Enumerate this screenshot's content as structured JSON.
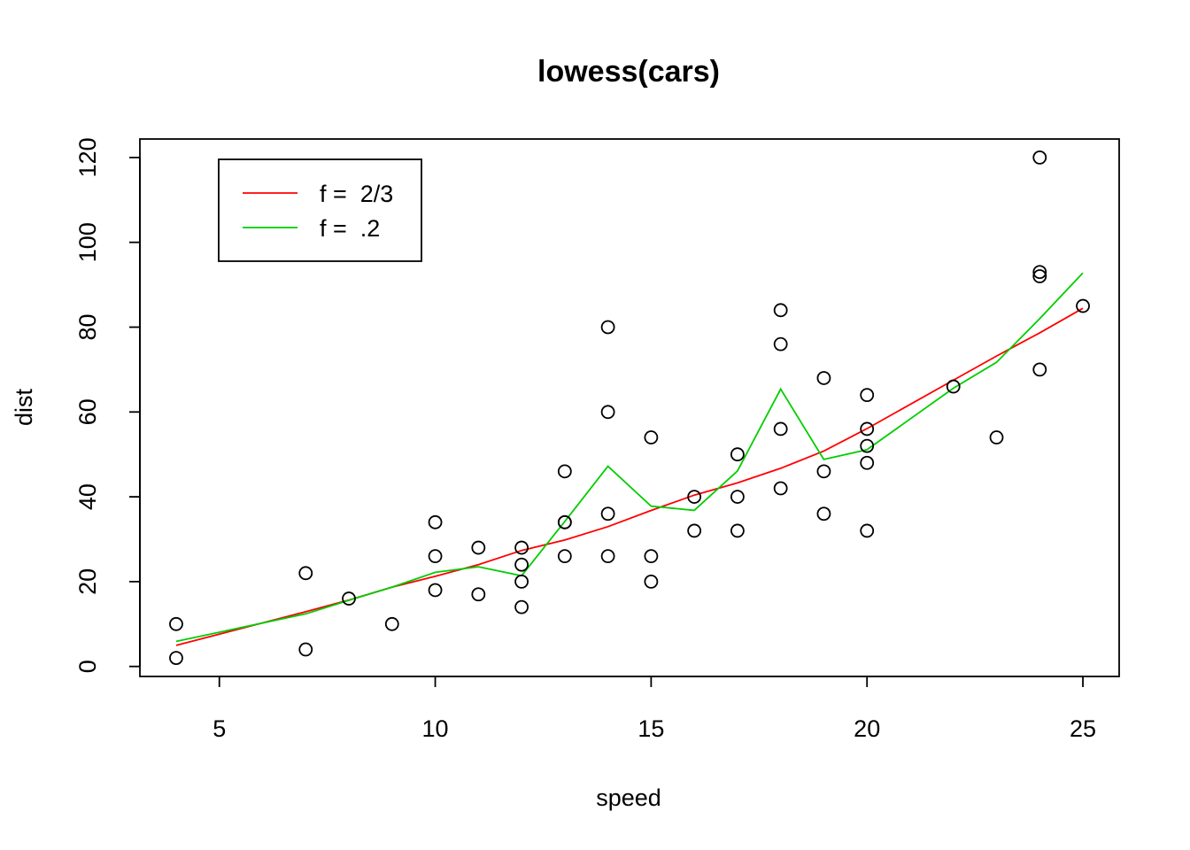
{
  "chart_data": {
    "type": "scatter",
    "title": "lowess(cars)",
    "xlabel": "speed",
    "ylabel": "dist",
    "xlim": [
      3.16,
      25.84
    ],
    "ylim": [
      -2.36,
      124.36
    ],
    "x_ticks": [
      5,
      10,
      15,
      20,
      25
    ],
    "y_ticks": [
      0,
      20,
      40,
      60,
      80,
      100,
      120
    ],
    "grid": false,
    "legend_position": "top-left",
    "points": {
      "x": [
        4,
        4,
        7,
        7,
        8,
        9,
        10,
        10,
        10,
        11,
        11,
        12,
        12,
        12,
        12,
        13,
        13,
        13,
        13,
        14,
        14,
        14,
        14,
        15,
        15,
        15,
        16,
        16,
        17,
        17,
        17,
        18,
        18,
        18,
        18,
        19,
        19,
        19,
        20,
        20,
        20,
        20,
        20,
        22,
        23,
        24,
        24,
        24,
        24,
        25
      ],
      "y": [
        2,
        10,
        4,
        22,
        16,
        10,
        18,
        26,
        34,
        17,
        28,
        14,
        20,
        24,
        28,
        26,
        34,
        34,
        46,
        26,
        36,
        60,
        80,
        20,
        26,
        54,
        32,
        40,
        32,
        40,
        50,
        42,
        56,
        76,
        84,
        36,
        46,
        68,
        32,
        48,
        52,
        56,
        64,
        66,
        54,
        70,
        92,
        93,
        120,
        85
      ]
    },
    "series": [
      {
        "name": "f =  2/3",
        "color": "#ff0000",
        "x": [
          4,
          7,
          8,
          9,
          10,
          11,
          12,
          13,
          14,
          15,
          16,
          17,
          18,
          19,
          20,
          22,
          23,
          24,
          25
        ],
        "y": [
          4.97,
          12.91,
          15.66,
          18.7,
          21.25,
          24.0,
          27.34,
          29.82,
          32.97,
          36.78,
          40.4,
          43.28,
          46.73,
          50.8,
          56.08,
          67.49,
          73.19,
          78.67,
          84.44
        ]
      },
      {
        "name": "f =  .2",
        "color": "#00cd00",
        "x": [
          4,
          7,
          8,
          9,
          10,
          11,
          12,
          13,
          14,
          15,
          16,
          17,
          18,
          19,
          20,
          22,
          23,
          24,
          25
        ],
        "y": [
          5.9,
          12.4,
          15.6,
          18.7,
          22.2,
          23.5,
          21.4,
          34.2,
          47.2,
          37.8,
          36.8,
          46.1,
          65.4,
          48.8,
          51.1,
          65.6,
          71.7,
          82.0,
          92.8
        ]
      }
    ]
  }
}
